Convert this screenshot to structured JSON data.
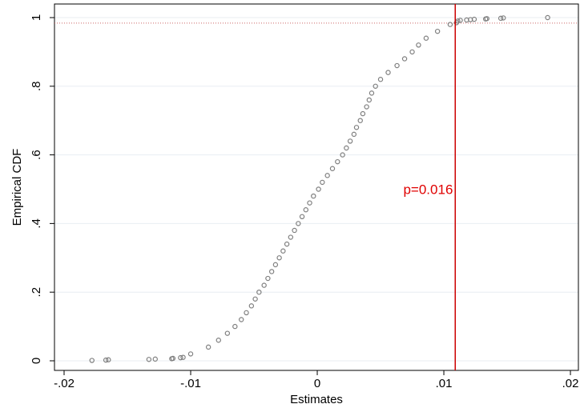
{
  "chart_data": {
    "type": "scatter",
    "xlabel": "Estimates",
    "ylabel": "Empirical CDF",
    "x": [
      -0.0178,
      -0.0167,
      -0.0165,
      -0.0133,
      -0.0128,
      -0.0115,
      -0.0114,
      -0.0108,
      -0.0106,
      -0.01,
      -0.0086,
      -0.0078,
      -0.0071,
      -0.0065,
      -0.006,
      -0.0056,
      -0.0052,
      -0.0049,
      -0.0046,
      -0.0042,
      -0.0039,
      -0.0036,
      -0.0033,
      -0.003,
      -0.0027,
      -0.0024,
      -0.0021,
      -0.0018,
      -0.0015,
      -0.0012,
      -0.0009,
      -0.0006,
      -0.0003,
      0.0001,
      0.0004,
      0.0008,
      0.0012,
      0.0016,
      0.002,
      0.0023,
      0.0026,
      0.0029,
      0.0031,
      0.0034,
      0.0036,
      0.0039,
      0.0041,
      0.0043,
      0.0046,
      0.005,
      0.0056,
      0.0063,
      0.0069,
      0.0075,
      0.008,
      0.0086,
      0.0095,
      0.0105,
      0.011,
      0.0111,
      0.0113,
      0.0118,
      0.0121,
      0.0124,
      0.0133,
      0.0134,
      0.0145,
      0.0147,
      0.0182
    ],
    "values": [
      0.001,
      0.002,
      0.003,
      0.004,
      0.005,
      0.006,
      0.007,
      0.009,
      0.01,
      0.02,
      0.04,
      0.06,
      0.08,
      0.1,
      0.12,
      0.14,
      0.16,
      0.18,
      0.2,
      0.22,
      0.24,
      0.26,
      0.28,
      0.3,
      0.32,
      0.34,
      0.36,
      0.38,
      0.4,
      0.42,
      0.44,
      0.46,
      0.48,
      0.5,
      0.52,
      0.54,
      0.56,
      0.58,
      0.6,
      0.62,
      0.64,
      0.66,
      0.68,
      0.7,
      0.72,
      0.74,
      0.76,
      0.78,
      0.8,
      0.82,
      0.84,
      0.86,
      0.88,
      0.9,
      0.92,
      0.94,
      0.96,
      0.98,
      0.985,
      0.99,
      0.992,
      0.993,
      0.994,
      0.995,
      0.996,
      0.997,
      0.998,
      0.999,
      1.0
    ],
    "color": "#7f7f7f",
    "xlim": [
      -0.02076,
      0.02063
    ],
    "xticks": [
      {
        "value": -0.02,
        "label": "-.02"
      },
      {
        "value": -0.01,
        "label": "-.01"
      },
      0,
      {
        "value": 0.01,
        "label": ".01"
      },
      {
        "value": 0.02,
        "label": ".02"
      }
    ],
    "ylim": [
      -0.028,
      1.0396
    ],
    "yticks": [
      0,
      {
        "value": 0.2,
        "label": ".2"
      },
      {
        "value": 0.4,
        "label": ".4"
      },
      {
        "value": 0.6,
        "label": ".6"
      },
      {
        "value": 0.8,
        "label": ".8"
      },
      1
    ],
    "grid": true,
    "vline": {
      "value": 0.0109,
      "color": "#cc0000"
    },
    "hline": {
      "value": 0.984,
      "color": "#cc6666"
    },
    "annotation": {
      "text": "p=0.016",
      "x": 0.0068,
      "y": 0.497,
      "color": "#e00000"
    }
  }
}
